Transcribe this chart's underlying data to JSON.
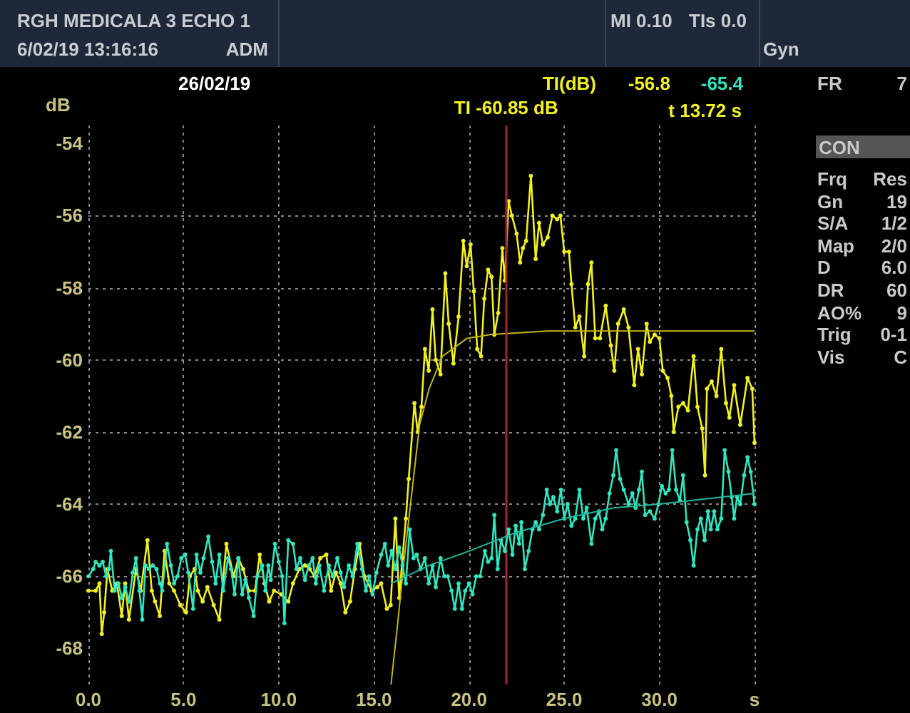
{
  "chart_data": {
    "type": "line",
    "ylabel": "dB",
    "xlim": [
      0,
      35
    ],
    "ylim": [
      -69,
      -53.5
    ],
    "xticks": [
      {
        "value": 0,
        "label": "0.0"
      },
      {
        "value": 5,
        "label": "5.0"
      },
      {
        "value": 10,
        "label": "10.0"
      },
      {
        "value": 15,
        "label": "15.0"
      },
      {
        "value": 20,
        "label": "20.0"
      },
      {
        "value": 25,
        "label": "25.0"
      },
      {
        "value": 30,
        "label": "30.0"
      },
      {
        "value": 35,
        "label": "s"
      }
    ],
    "yticks": [
      -68,
      -66,
      -64,
      -62,
      -60,
      -58,
      -56,
      -54
    ],
    "grid": true,
    "ref_lines": [
      {
        "axis": "x",
        "value": 21.95,
        "label": "TI -60.85 dB",
        "color": "#a8242c"
      }
    ],
    "annotations": [
      "RGH MEDICALA 3 ECHO 1",
      "6/02/19 13:16:16",
      "ADM",
      "MI 0.10",
      "TIs 0.0",
      "Gyn",
      "26/02/19",
      "TI(dB)",
      "-56.8",
      "-65.4",
      "t 13.72 s",
      "FR",
      "7",
      "CON",
      "Frq",
      "Res",
      "Gn",
      "19",
      "S/A",
      "1/2",
      "Map",
      "2/0",
      "D",
      "6.0",
      "DR",
      "60",
      "AO%",
      "9",
      "Trig",
      "0-1",
      "Vis",
      "C"
    ],
    "series": [
      {
        "color": "#f2f01e",
        "marker": "circle",
        "x": [
          0,
          0.38,
          0.58,
          0.7,
          0.83,
          1,
          1.25,
          1.5,
          1.75,
          1.93,
          2.13,
          2.5,
          2.75,
          3.1,
          3.33,
          3.5,
          3.75,
          4,
          4.25,
          4.5,
          4.83,
          5.13,
          5.33,
          5.58,
          5.75,
          6,
          6.25,
          6.58,
          6.88,
          7.25,
          7.63,
          7.88,
          8.13,
          8.43,
          8.75,
          9,
          9.25,
          9.5,
          9.75,
          10.13,
          10.5,
          10.75,
          11.08,
          11.38,
          11.63,
          11.88,
          12.18,
          12.5,
          12.75,
          13,
          13.25,
          13.5,
          13.75,
          14,
          14.25,
          14.5,
          14.88,
          15.18,
          15.38,
          15.68,
          15.88,
          16.13,
          16.33,
          16.5,
          16.68,
          16.83,
          17.13,
          17.3,
          17.5,
          17.68,
          17.88,
          18.08,
          18.25,
          18.5,
          18.75,
          18.93,
          19.18,
          19.45,
          19.7,
          19.88,
          20.08,
          20.25,
          20.43,
          20.63,
          20.8,
          21,
          21.18,
          21.33,
          21.53,
          21.75,
          21.88,
          22.08,
          22.25,
          22.5,
          22.68,
          22.83,
          23,
          23.25,
          23.5,
          23.68,
          23.88,
          24.13,
          24.38,
          24.63,
          24.8,
          25,
          25.25,
          25.38,
          25.58,
          25.8,
          26.05,
          26.25,
          26.43,
          26.63,
          26.88,
          27.18,
          27.45,
          27.63,
          27.83,
          28.13,
          28.38,
          28.68,
          28.88,
          29.08,
          29.33,
          29.5,
          29.75,
          30,
          30.18,
          30.43,
          30.63,
          30.75,
          31,
          31.25,
          31.5,
          31.8,
          32,
          32.25,
          32.4,
          32.5,
          32.75,
          33,
          33.25,
          33.5,
          33.68,
          33.93,
          34.25,
          34.63,
          34.88,
          35
        ],
        "values": [
          -66.4,
          -66.4,
          -66.2,
          -67.6,
          -67,
          -65.8,
          -66.4,
          -66.2,
          -67.1,
          -66.2,
          -67.2,
          -65.8,
          -66.4,
          -65,
          -66.4,
          -66.7,
          -67.1,
          -65.3,
          -66.2,
          -66.4,
          -66.8,
          -67,
          -66,
          -65.8,
          -66.4,
          -66.7,
          -66.3,
          -66.8,
          -67.2,
          -65.1,
          -66,
          -65.5,
          -65.8,
          -66.4,
          -66.4,
          -65.4,
          -66.2,
          -66.7,
          -66.4,
          -66.5,
          -66.7,
          -66.2,
          -65.8,
          -65.7,
          -65.8,
          -66,
          -65.5,
          -65.4,
          -66.4,
          -65.9,
          -66.2,
          -67,
          -66.7,
          -65.8,
          -65.1,
          -66,
          -66.4,
          -66.3,
          -66.2,
          -66.9,
          -66.8,
          -64.4,
          -66.6,
          -65.5,
          -64.4,
          -63.3,
          -61.2,
          -62,
          -61.3,
          -59.7,
          -60.3,
          -58.6,
          -60,
          -60.4,
          -57.6,
          -59,
          -60.1,
          -58.8,
          -56.7,
          -57.4,
          -56.8,
          -58.1,
          -59.7,
          -59.9,
          -58.3,
          -57.5,
          -57.7,
          -59.3,
          -58.7,
          -56.9,
          -57.8,
          -55.6,
          -56,
          -56.5,
          -57.3,
          -56.9,
          -56.7,
          -54.9,
          -57.2,
          -56.2,
          -56.8,
          -56.6,
          -56,
          -56.1,
          -56,
          -57,
          -57,
          -57.9,
          -59.1,
          -58.8,
          -59.9,
          -57.9,
          -57.3,
          -59.4,
          -59.4,
          -58.5,
          -59.6,
          -60.3,
          -59,
          -58.6,
          -59.1,
          -60.7,
          -59.7,
          -60.4,
          -59,
          -59.5,
          -59.3,
          -59.4,
          -60.3,
          -60.5,
          -61,
          -62,
          -61.3,
          -61.2,
          -61.4,
          -59.9,
          -61.3,
          -61.9,
          -63.2,
          -60.8,
          -60.6,
          -61,
          -59.7,
          -61.2,
          -61.6,
          -60.7,
          -61.8,
          -60.5,
          -60.8,
          -62.3
        ]
      },
      {
        "color": "#c4b814",
        "marker": "none",
        "x": [
          15.9,
          16.25,
          16.6,
          17.4,
          17.9,
          18.6,
          19.9,
          21.1,
          24.1,
          35
        ],
        "values": [
          -69,
          -67.3,
          -65.5,
          -61.8,
          -60.8,
          -59.9,
          -59.4,
          -59.3,
          -59.2,
          -59.2
        ]
      },
      {
        "color": "#2ee6c0",
        "marker": "circle",
        "x": [
          0,
          0.25,
          0.38,
          0.58,
          0.75,
          0.93,
          1.08,
          1.18,
          1.38,
          1.58,
          1.75,
          1.93,
          2.13,
          2.33,
          2.5,
          2.68,
          2.83,
          3,
          3.18,
          3.38,
          3.58,
          3.75,
          3.88,
          4.13,
          4.33,
          4.5,
          4.68,
          4.88,
          5.08,
          5.25,
          5.5,
          5.68,
          5.88,
          6.05,
          6.3,
          6.5,
          6.68,
          6.88,
          7.08,
          7.33,
          7.5,
          7.68,
          7.88,
          8.08,
          8.25,
          8.43,
          8.68,
          8.88,
          9.13,
          9.3,
          9.45,
          9.58,
          9.8,
          10,
          10.18,
          10.3,
          10.5,
          10.75,
          10.93,
          11.13,
          11.38,
          11.58,
          11.78,
          11.95,
          12.13,
          12.38,
          12.63,
          12.83,
          13.08,
          13.25,
          13.43,
          13.68,
          13.88,
          14.13,
          14.38,
          14.58,
          14.75,
          14.93,
          15.13,
          15.38,
          15.58,
          15.75,
          15.93,
          16.13,
          16.33,
          16.5,
          16.68,
          16.88,
          17.08,
          17.25,
          17.45,
          17.68,
          17.88,
          18.08,
          18.25,
          18.5,
          18.7,
          18.88,
          19.08,
          19.25,
          19.45,
          19.63,
          19.8,
          20,
          20.18,
          20.38,
          20.58,
          20.83,
          21,
          21.18,
          21.33,
          21.5,
          21.68,
          21.88,
          22.08,
          22.28,
          22.45,
          22.63,
          22.75,
          22.93,
          23.13,
          23.33,
          23.5,
          23.68,
          23.88,
          24.08,
          24.25,
          24.43,
          24.63,
          24.83,
          25,
          25.18,
          25.38,
          25.58,
          25.8,
          26,
          26.18,
          26.43,
          26.63,
          26.83,
          27,
          27.18,
          27.38,
          27.58,
          27.73,
          27.93,
          28.13,
          28.38,
          28.58,
          28.75,
          28.93,
          29.08,
          29.25,
          29.5,
          29.75,
          29.95,
          30.13,
          30.33,
          30.5,
          30.68,
          30.88,
          31.08,
          31.25,
          31.43,
          31.63,
          31.8,
          32,
          32.18,
          32.38,
          32.55,
          32.7,
          32.88,
          33.05,
          33.25,
          33.43,
          33.63,
          33.8,
          33.93,
          34.08,
          34.25,
          34.45,
          34.63,
          34.8,
          35
        ],
        "values": [
          -66,
          -65.8,
          -65.6,
          -65.7,
          -65.6,
          -66,
          -65.8,
          -65.3,
          -66.4,
          -66.2,
          -66.6,
          -66.3,
          -66.7,
          -65.9,
          -65.5,
          -66.4,
          -67.2,
          -65.7,
          -65.8,
          -65.7,
          -65.8,
          -66.2,
          -66.4,
          -65.1,
          -65.7,
          -66.2,
          -66,
          -65.5,
          -65.4,
          -65.9,
          -66.9,
          -65.4,
          -65.9,
          -65.5,
          -64.9,
          -65.6,
          -66.2,
          -65.4,
          -66.4,
          -65.5,
          -65.8,
          -66.5,
          -65.5,
          -66.5,
          -66.1,
          -66.6,
          -67.1,
          -66,
          -65.7,
          -66.4,
          -65.7,
          -66.1,
          -65.1,
          -65.6,
          -66,
          -67.3,
          -65,
          -65.1,
          -65.8,
          -65.5,
          -66.1,
          -65.7,
          -65.5,
          -66.2,
          -65.7,
          -66.4,
          -65.7,
          -66,
          -65.5,
          -65.9,
          -66.3,
          -65.7,
          -66,
          -65.1,
          -65.8,
          -66.4,
          -66,
          -66.5,
          -65.9,
          -65.4,
          -65.1,
          -65.7,
          -65.3,
          -65.8,
          -65.2,
          -65.7,
          -66.2,
          -64.7,
          -65.5,
          -65.4,
          -65.8,
          -65.5,
          -66.2,
          -65.7,
          -66.3,
          -65.5,
          -66,
          -66,
          -66.4,
          -66.9,
          -66.2,
          -66.9,
          -66.4,
          -66.2,
          -66.5,
          -66,
          -66,
          -65.3,
          -65.6,
          -65.5,
          -64.3,
          -65.8,
          -65,
          -65.3,
          -64.7,
          -65.4,
          -64.6,
          -65.1,
          -64.5,
          -65.8,
          -65.3,
          -64.7,
          -64.5,
          -64.7,
          -64.3,
          -63.6,
          -64,
          -63.8,
          -64.2,
          -63.6,
          -64.4,
          -64,
          -64.6,
          -64.4,
          -63.6,
          -64.4,
          -64.1,
          -65.1,
          -64.4,
          -64.2,
          -64.7,
          -64.4,
          -63.7,
          -63.2,
          -62.5,
          -63.3,
          -63.6,
          -64,
          -63.7,
          -64.1,
          -63.6,
          -63.1,
          -64.3,
          -64.2,
          -64.4,
          -64,
          -63.5,
          -63.7,
          -63.6,
          -62.5,
          -63.6,
          -63.9,
          -63.2,
          -64.5,
          -65,
          -65.7,
          -64.7,
          -64.4,
          -65,
          -64.2,
          -64.7,
          -64.2,
          -64.7,
          -64.4,
          -62.5,
          -63.1,
          -63.8,
          -64.4,
          -63.8,
          -64,
          -63.2,
          -62.7,
          -63.1,
          -64
        ]
      },
      {
        "color": "#1fb89c",
        "marker": "none",
        "x": [
          15.9,
          17.9,
          20,
          22.4,
          25,
          27.6,
          30,
          35
        ],
        "values": [
          -66.2,
          -65.7,
          -65.3,
          -64.8,
          -64.4,
          -64.1,
          -64,
          -63.7
        ]
      }
    ]
  }
}
